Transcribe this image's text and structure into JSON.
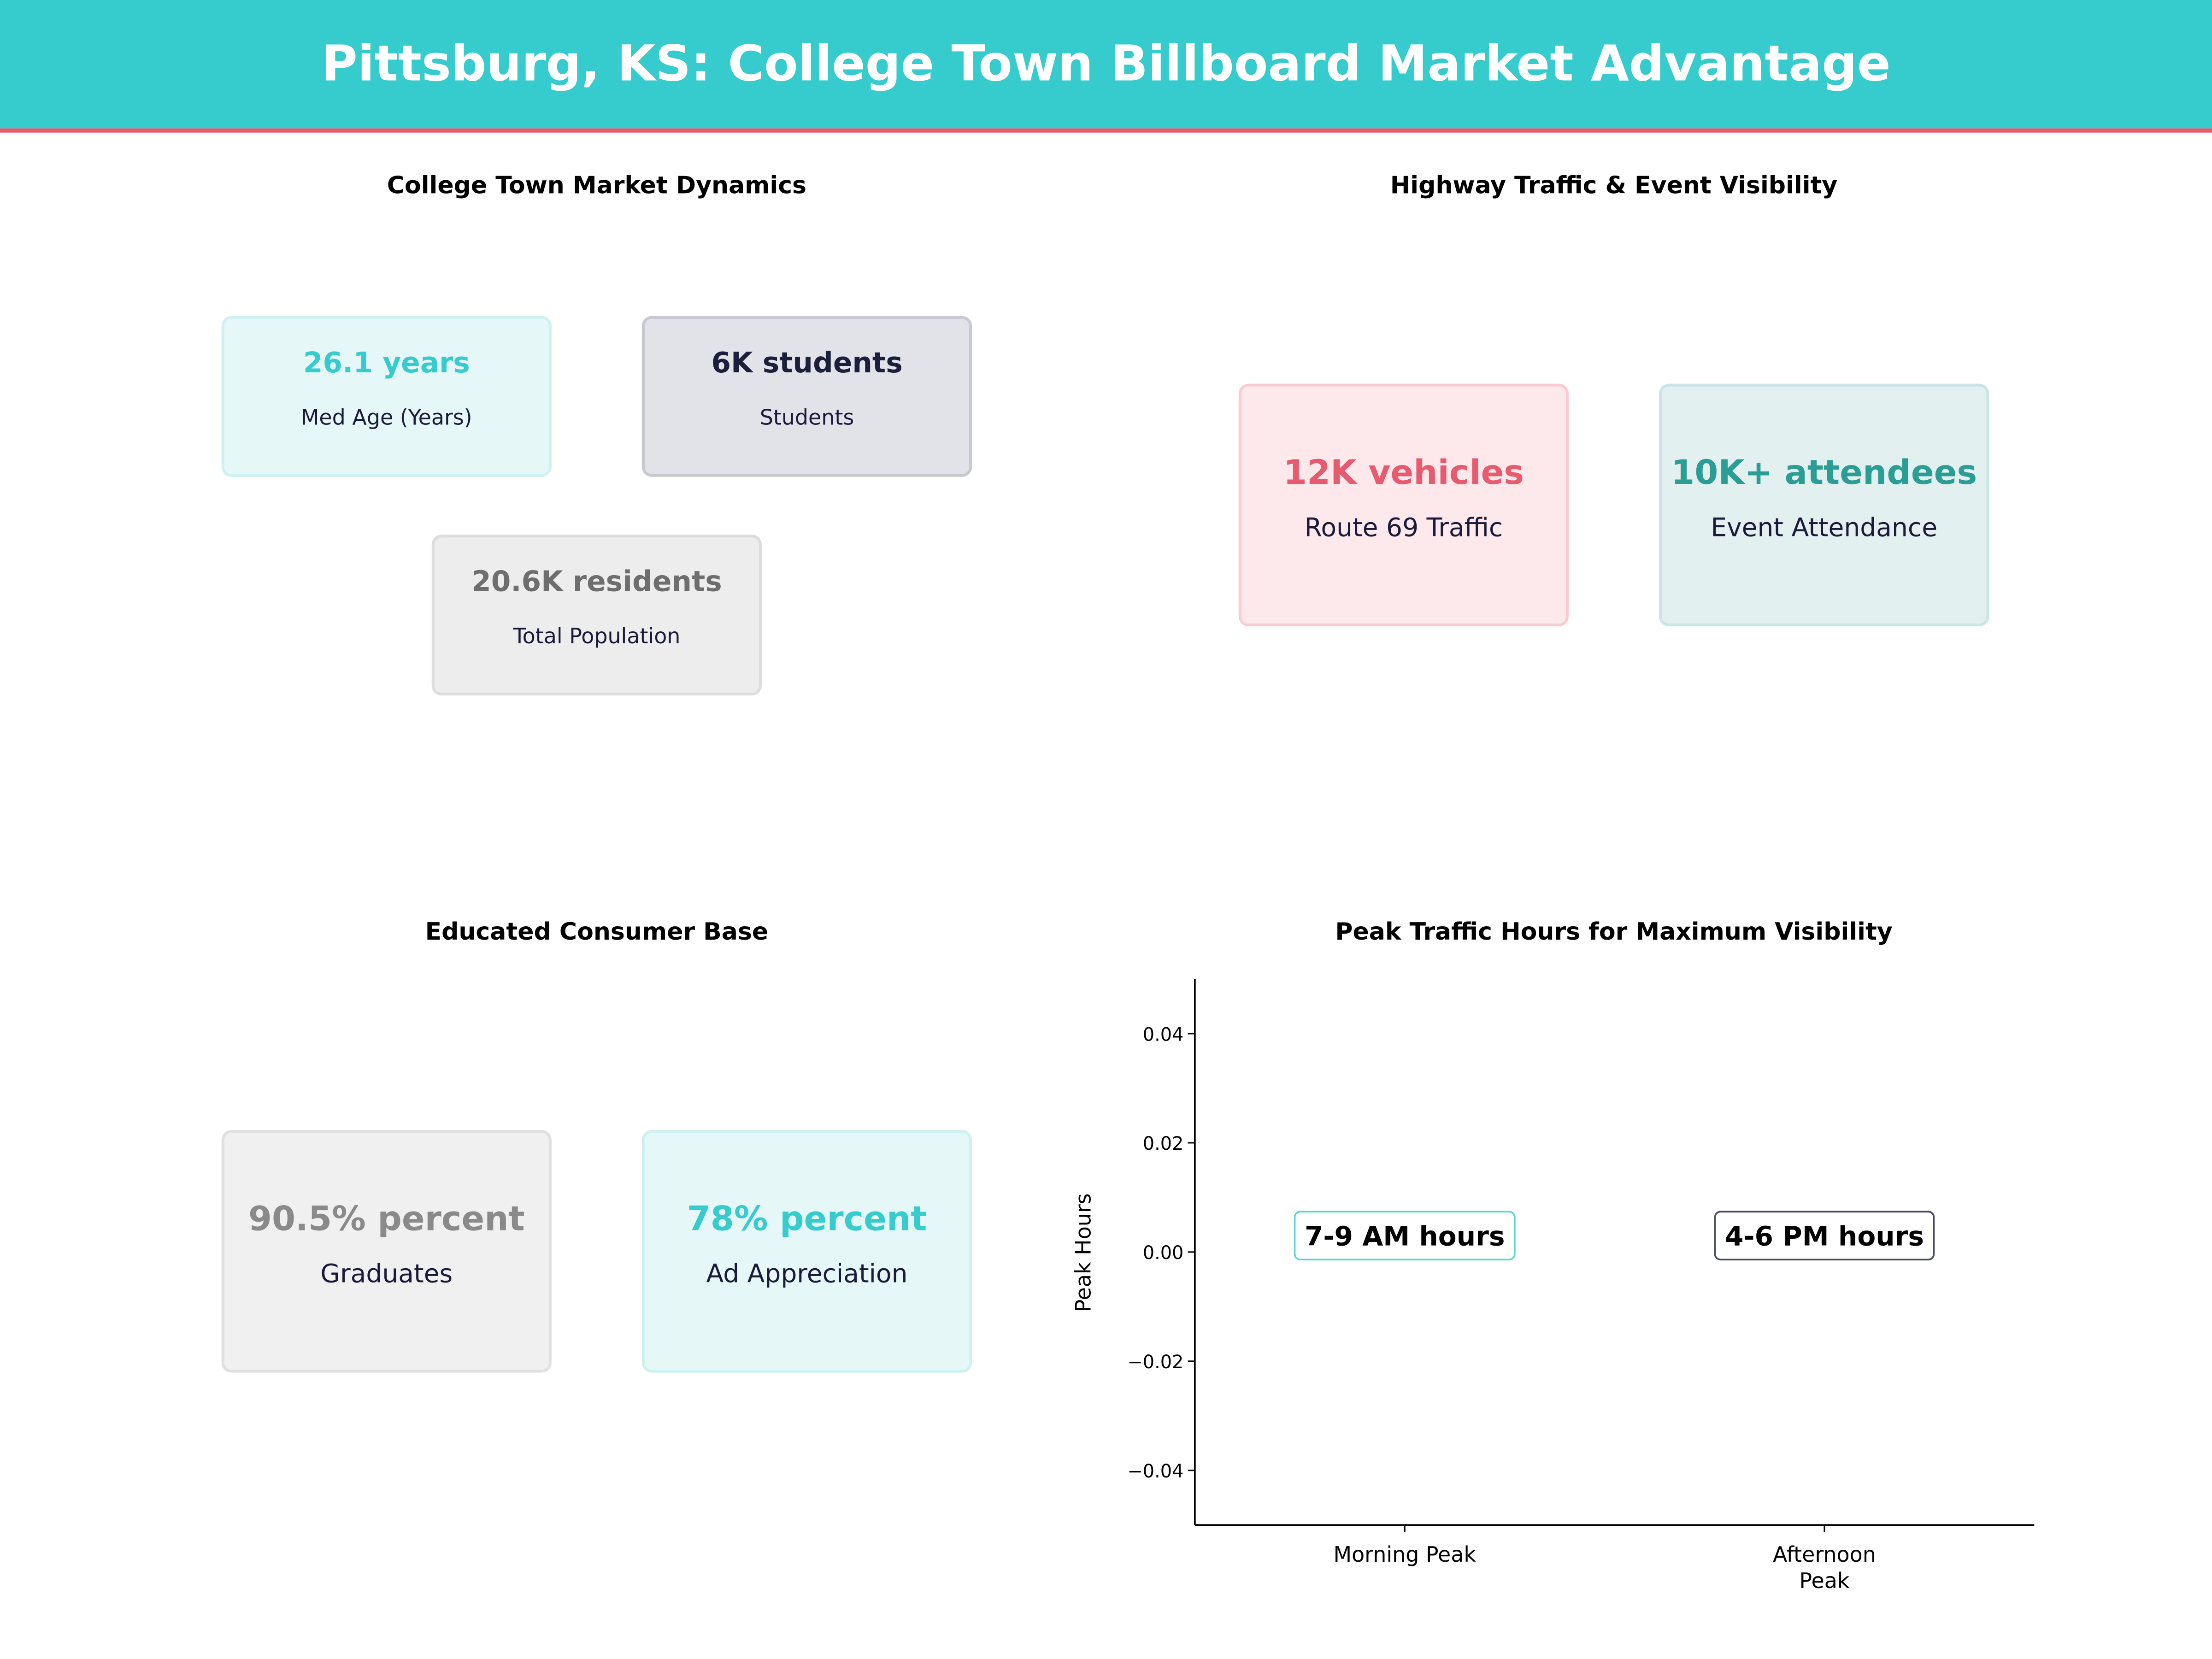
{
  "header": {
    "title": "Pittsburg, KS: College Town Billboard Market Advantage",
    "bg_color": "#36CBCC",
    "accent_line_color": "#E85A6E"
  },
  "panels": {
    "market": {
      "title": "College Town Market Dynamics",
      "cards": [
        {
          "value": "26.1 years",
          "label": "Med Age (Years)",
          "color": "#36CBCC"
        },
        {
          "value": "6K students",
          "label": "Students",
          "color": "#1B1F3B"
        },
        {
          "value": "20.6K residents",
          "label": "Total Population",
          "color": "#6E6E6E"
        }
      ]
    },
    "highway": {
      "title": "Highway Traffic & Event Visibility",
      "cards": [
        {
          "value": "12K vehicles",
          "label": "Route 69 Traffic",
          "color": "#E85A6E"
        },
        {
          "value": "10K+ attendees",
          "label": "Event Attendance",
          "color": "#2A9D94"
        }
      ]
    },
    "education": {
      "title": "Educated Consumer Base",
      "cards": [
        {
          "value": "90.5% percent",
          "label": "Graduates",
          "color": "#8A8A8A"
        },
        {
          "value": "78% percent",
          "label": "Ad Appreciation",
          "color": "#36CBCC"
        }
      ]
    }
  },
  "chart_data": {
    "type": "bar",
    "title": "Peak Traffic Hours for Maximum Visibility",
    "ylabel": "Peak Hours",
    "xlabel": "",
    "categories": [
      "Morning Peak",
      "Afternoon\nPeak"
    ],
    "category_lines": [
      [
        "Morning Peak"
      ],
      [
        "Afternoon",
        "Peak"
      ]
    ],
    "values": [
      0,
      0
    ],
    "ylim": [
      -0.05,
      0.05
    ],
    "yticks": [
      -0.04,
      -0.02,
      0.0,
      0.02,
      0.04
    ],
    "ytick_labels": [
      "−0.04",
      "−0.02",
      "0.00",
      "0.02",
      "0.04"
    ],
    "annotations": [
      {
        "text": "7-9 AM hours",
        "category": 0,
        "y": 0.003,
        "border_color": "#36CBCC"
      },
      {
        "text": "4-6 PM hours",
        "category": 1,
        "y": 0.003,
        "border_color": "#1B1F3B"
      }
    ],
    "grid": false
  }
}
